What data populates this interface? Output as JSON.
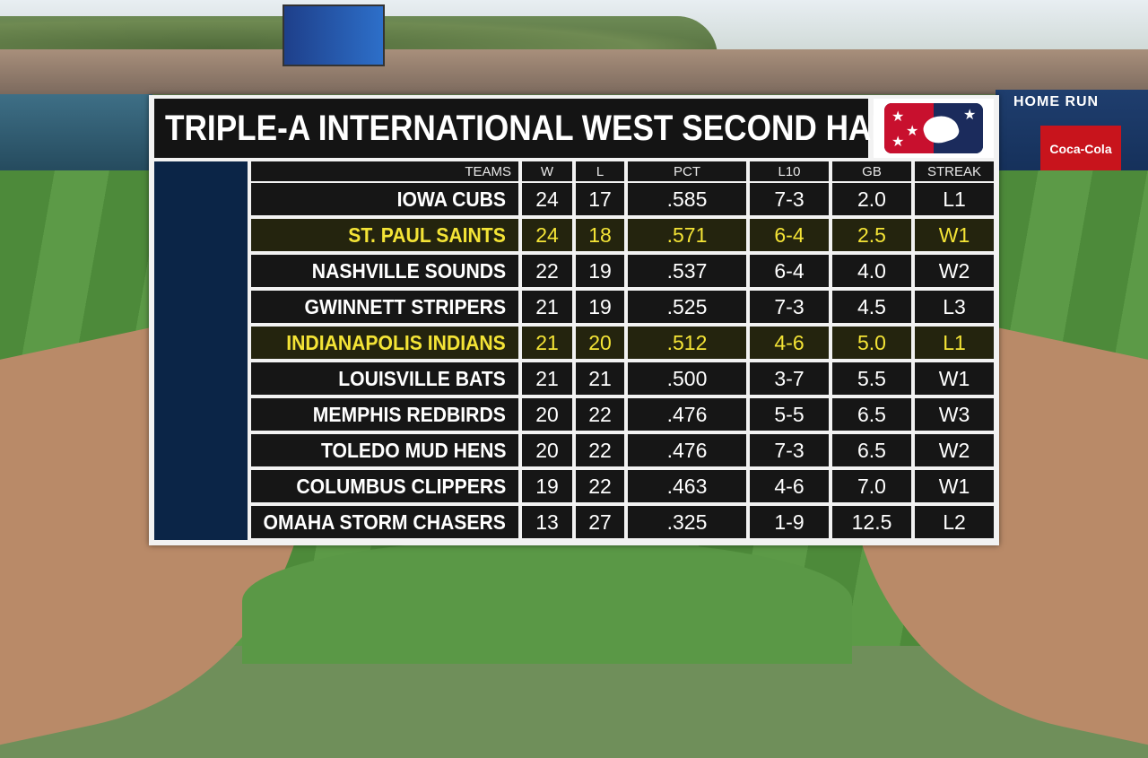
{
  "graphic": {
    "title": "TRIPLE-A INTERNATIONAL WEST SECOND HALF",
    "logo": "milb-logo-icon",
    "highlight_color": "#f4e436"
  },
  "background": {
    "ad_brand": "Coca-Cola",
    "ad_banner": "HOME RUN"
  },
  "columns": [
    "TEAMS",
    "W",
    "L",
    "PCT",
    "L10",
    "GB",
    "STREAK"
  ],
  "rows": [
    {
      "team": "IOWA CUBS",
      "w": "24",
      "l": "17",
      "pct": ".585",
      "l10": "7-3",
      "gb": "2.0",
      "streak": "L1",
      "highlight": false
    },
    {
      "team": "ST. PAUL SAINTS",
      "w": "24",
      "l": "18",
      "pct": ".571",
      "l10": "6-4",
      "gb": "2.5",
      "streak": "W1",
      "highlight": true
    },
    {
      "team": "NASHVILLE SOUNDS",
      "w": "22",
      "l": "19",
      "pct": ".537",
      "l10": "6-4",
      "gb": "4.0",
      "streak": "W2",
      "highlight": false
    },
    {
      "team": "GWINNETT STRIPERS",
      "w": "21",
      "l": "19",
      "pct": ".525",
      "l10": "7-3",
      "gb": "4.5",
      "streak": "L3",
      "highlight": false
    },
    {
      "team": "INDIANAPOLIS INDIANS",
      "w": "21",
      "l": "20",
      "pct": ".512",
      "l10": "4-6",
      "gb": "5.0",
      "streak": "L1",
      "highlight": true
    },
    {
      "team": "LOUISVILLE BATS",
      "w": "21",
      "l": "21",
      "pct": ".500",
      "l10": "3-7",
      "gb": "5.5",
      "streak": "W1",
      "highlight": false
    },
    {
      "team": "MEMPHIS REDBIRDS",
      "w": "20",
      "l": "22",
      "pct": ".476",
      "l10": "5-5",
      "gb": "6.5",
      "streak": "W3",
      "highlight": false
    },
    {
      "team": "TOLEDO MUD HENS",
      "w": "20",
      "l": "22",
      "pct": ".476",
      "l10": "7-3",
      "gb": "6.5",
      "streak": "W2",
      "highlight": false
    },
    {
      "team": "COLUMBUS CLIPPERS",
      "w": "19",
      "l": "22",
      "pct": ".463",
      "l10": "4-6",
      "gb": "7.0",
      "streak": "W1",
      "highlight": false
    },
    {
      "team": "OMAHA STORM CHASERS",
      "w": "13",
      "l": "27",
      "pct": ".325",
      "l10": "1-9",
      "gb": "12.5",
      "streak": "L2",
      "highlight": false
    }
  ]
}
